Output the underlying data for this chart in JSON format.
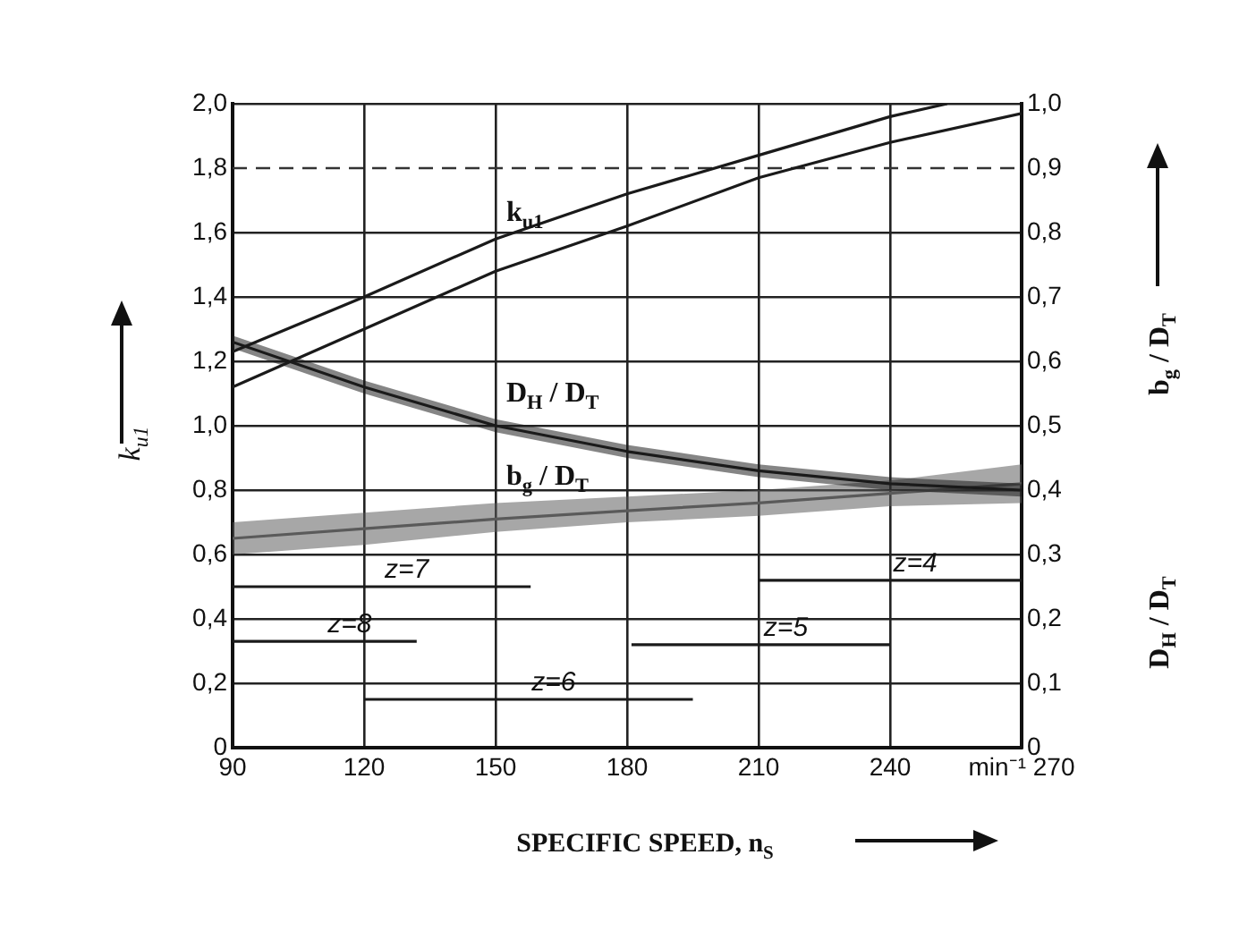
{
  "chart_data": {
    "type": "line",
    "xlabel": "SPECIFIC SPEED, n$_{S}$",
    "ylabel": "k$_{u1}$",
    "y2label": "b$_{g}$ / D$_{T}$",
    "annotations": [
      "D$_{H}$ / D$_{T}$"
    ],
    "xlim": [
      90,
      270
    ],
    "xticks": [
      90,
      120,
      150,
      180,
      210,
      240,
      {
        "value": 270,
        "label": "min⁻¹ 270"
      }
    ],
    "ylim": [
      0,
      2
    ],
    "yticks": [
      0,
      {
        "value": 0.2,
        "label": "0,2"
      },
      {
        "value": 0.4,
        "label": "0,4"
      },
      {
        "value": 0.6,
        "label": "0,6"
      },
      {
        "value": 0.8,
        "label": "0,8"
      },
      {
        "value": 1,
        "label": "1,0"
      },
      {
        "value": 1.2,
        "label": "1,2"
      },
      {
        "value": 1.4,
        "label": "1,4"
      },
      {
        "value": 1.6,
        "label": "1,6"
      },
      {
        "value": 1.8,
        "label": "1,8"
      },
      {
        "value": 2,
        "label": "2,0"
      }
    ],
    "y2lim": [
      0,
      1
    ],
    "y2ticks": [
      0,
      {
        "value": 0.1,
        "label": "0,1"
      },
      {
        "value": 0.2,
        "label": "0,2"
      },
      {
        "value": 0.3,
        "label": "0,3"
      },
      {
        "value": 0.4,
        "label": "0,4"
      },
      {
        "value": 0.5,
        "label": "0,5"
      },
      {
        "value": 0.6,
        "label": "0,6"
      },
      {
        "value": 0.7,
        "label": "0,7"
      },
      {
        "value": 0.8,
        "label": "0,8"
      },
      {
        "value": 0.9,
        "label": "0,9"
      },
      {
        "value": 1,
        "label": "1,0"
      }
    ],
    "grid": true,
    "legend": false,
    "marker": "none",
    "line_style": "solid",
    "ref_lines": [
      {
        "axis": "y",
        "value": 1.8,
        "line_style": "dashed"
      }
    ],
    "series": [
      {
        "name": "k$_{u1}$",
        "color": "#1a1a1a",
        "x": [
          90,
          120,
          150,
          180,
          210,
          240,
          253
        ],
        "values": [
          1.23,
          1.4,
          1.58,
          1.72,
          1.84,
          1.96,
          2.0
        ]
      },
      {
        "color": "#1a1a1a",
        "x": [
          90,
          120,
          150,
          180,
          210,
          240,
          270
        ],
        "values": [
          1.12,
          1.3,
          1.48,
          1.62,
          1.77,
          1.88,
          1.97
        ]
      },
      {
        "name": "D$_{H}$ / D$_{T}$",
        "color": "#1a1a1a",
        "axis": "y2",
        "x": [
          90,
          120,
          150,
          180,
          210,
          240,
          270
        ],
        "values": [
          0.63,
          0.56,
          0.5,
          0.46,
          0.43,
          0.41,
          0.4
        ],
        "lower": [
          0.62,
          0.55,
          0.49,
          0.45,
          0.42,
          0.4,
          0.39
        ],
        "upper": [
          0.64,
          0.57,
          0.51,
          0.47,
          0.44,
          0.42,
          0.41
        ]
      },
      {
        "name": "b$_{g}$ / D$_{T}$",
        "color": "#5a5a5a",
        "axis": "y2",
        "x": [
          90,
          120,
          150,
          180,
          210,
          240,
          270
        ],
        "values": [
          0.325,
          0.34,
          0.355,
          0.368,
          0.38,
          0.395,
          0.41
        ],
        "lower": [
          0.3,
          0.315,
          0.335,
          0.35,
          0.36,
          0.375,
          0.38
        ],
        "upper": [
          0.35,
          0.365,
          0.38,
          0.39,
          0.4,
          0.415,
          0.44
        ]
      },
      {
        "name": "z=7",
        "color": "#1a1a1a",
        "x": [
          90,
          158
        ],
        "values": [
          0.5,
          0.5
        ]
      },
      {
        "name": "z=8",
        "color": "#1a1a1a",
        "x": [
          90,
          132
        ],
        "values": [
          0.33,
          0.33
        ]
      },
      {
        "name": "z=6",
        "color": "#1a1a1a",
        "x": [
          120,
          195
        ],
        "values": [
          0.15,
          0.15
        ]
      },
      {
        "name": "z=5",
        "color": "#1a1a1a",
        "x": [
          181,
          240
        ],
        "values": [
          0.32,
          0.32
        ]
      },
      {
        "name": "z=4",
        "color": "#1a1a1a",
        "x": [
          210,
          270
        ],
        "values": [
          0.52,
          0.52
        ]
      }
    ]
  }
}
